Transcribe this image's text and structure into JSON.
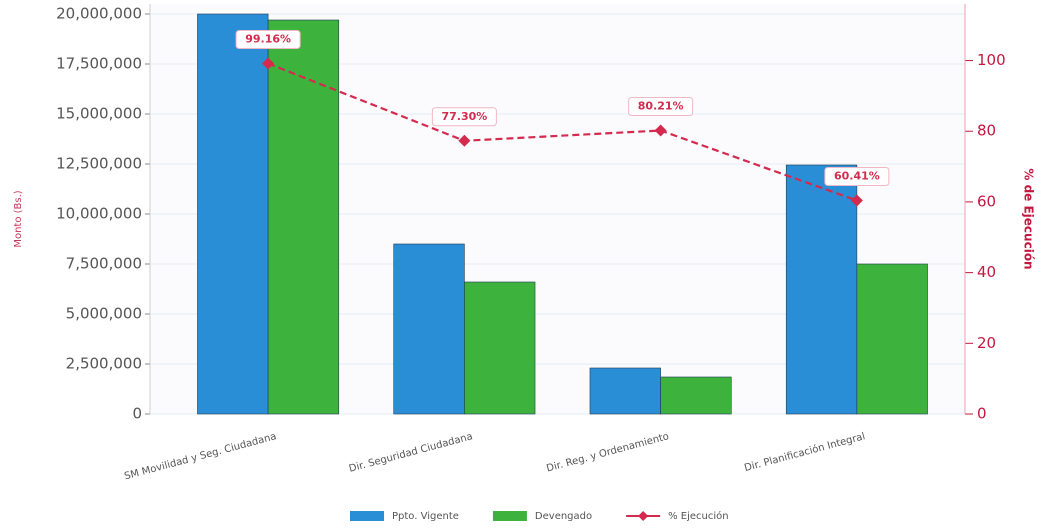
{
  "chart_data": {
    "type": "bar",
    "categories": [
      "SM Movilidad y Seg. Ciudadana",
      "Dir. Seguridad Ciudadana",
      "Dir. Reg. y Ordenamiento",
      "Dir. Planificación Integral"
    ],
    "series": [
      {
        "name": "Ppto. Vigente",
        "color": "#2a8ed6",
        "values": [
          20000000,
          8500000,
          2300000,
          12450000
        ]
      },
      {
        "name": "Devengado",
        "color": "#3db33d",
        "values": [
          19700000,
          6600000,
          1850000,
          7500000
        ]
      },
      {
        "name": "% Ejecución",
        "color": "#d42a4e",
        "type": "line",
        "axis": "y2",
        "values": [
          99.16,
          77.3,
          80.21,
          60.41
        ],
        "value_labels": [
          "99.16%",
          "77.30%",
          "80.21%",
          "60.41%"
        ]
      }
    ],
    "y_label": "Monto (Bs.)",
    "y2_label": "% de Ejecución",
    "ylim": [
      0,
      20500000
    ],
    "yticks": [
      0,
      {
        "value": 2500000,
        "label": "2,500,000"
      },
      {
        "value": 5000000,
        "label": "5,000,000"
      },
      {
        "value": 7500000,
        "label": "7,500,000"
      },
      {
        "value": 10000000,
        "label": "10,000,000"
      },
      {
        "value": 12500000,
        "label": "12,500,000"
      },
      {
        "value": 15000000,
        "label": "15,000,000"
      },
      {
        "value": 17500000,
        "label": "17,500,000"
      },
      {
        "value": 20000000,
        "label": "20,000,000"
      }
    ],
    "y2lim": [
      0,
      116
    ],
    "y2ticks": [
      0,
      20,
      40,
      60,
      80,
      100
    ],
    "grid": true,
    "legend": "bottom"
  }
}
